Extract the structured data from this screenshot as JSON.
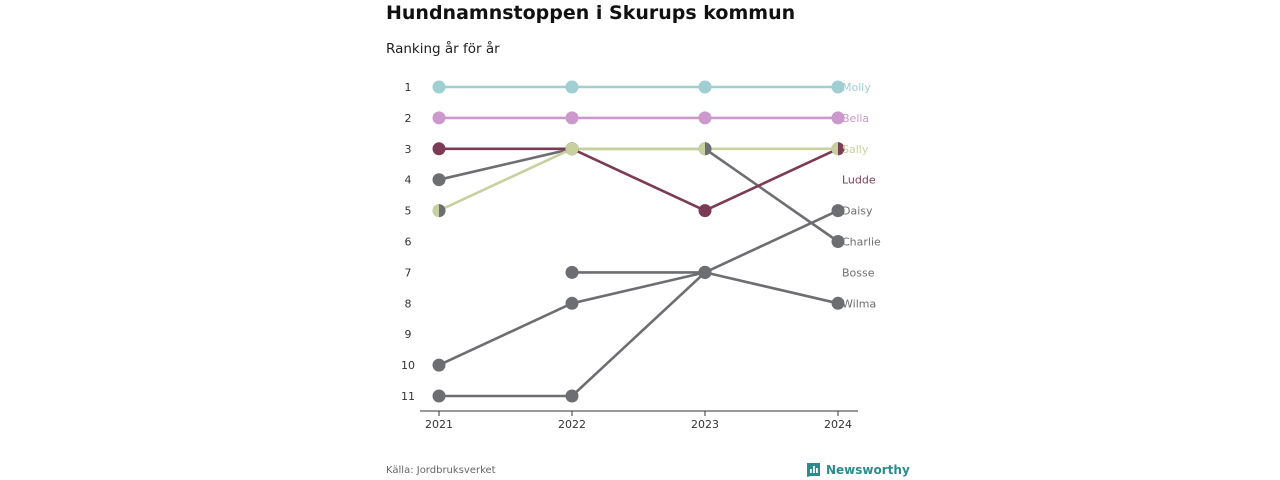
{
  "header": {
    "title": "Hundnamnstoppen i Skurups kommun",
    "subtitle": "Ranking år för år"
  },
  "footer": {
    "source": "Källa: Jordbruksverket",
    "brand": "Newsworthy"
  },
  "colors": {
    "grey": "#6d6e71",
    "molly": "#9fcfd0",
    "bella": "#cc99cc",
    "sally": "#c7d1a0",
    "ludde": "#7b3b55",
    "axis": "#333333",
    "brand": "#2e8b8b"
  },
  "icons": {
    "brand": "newsworthy-logo-icon"
  },
  "chart_data": {
    "type": "line",
    "title": "Hundnamnstoppen i Skurups kommun",
    "subtitle": "Ranking år för år",
    "x": [
      "2021",
      "2022",
      "2023",
      "2024"
    ],
    "y_ticks": [
      "1",
      "2",
      "3",
      "4",
      "5",
      "6",
      "7",
      "8",
      "9",
      "10",
      "11"
    ],
    "ylim": [
      1,
      11
    ],
    "y_reversed": true,
    "grid": false,
    "series": [
      {
        "name": "Daisy",
        "color": "#6d6e71",
        "values": [
          11,
          11,
          7,
          5
        ]
      },
      {
        "name": "Bosse",
        "color": "#6d6e71",
        "values": [
          10,
          8,
          7,
          null
        ]
      },
      {
        "name": "Wilma",
        "color": "#6d6e71",
        "values": [
          null,
          7,
          7,
          8
        ]
      },
      {
        "name": "Charlie",
        "color": "#6d6e71",
        "values": [
          4,
          3,
          3,
          6
        ]
      },
      {
        "name": "Ludde",
        "color": "#7b3b55",
        "values": [
          3,
          3,
          5,
          3
        ]
      },
      {
        "name": "Sally",
        "color": "#c7d1a0",
        "values": [
          5,
          3,
          3,
          3
        ]
      },
      {
        "name": "Bella",
        "color": "#cc99cc",
        "values": [
          2,
          2,
          2,
          2
        ]
      },
      {
        "name": "Molly",
        "color": "#9fcfd0",
        "values": [
          1,
          1,
          1,
          1
        ]
      }
    ],
    "end_labels": [
      {
        "name": "Molly",
        "rank": 1
      },
      {
        "name": "Bella",
        "rank": 2
      },
      {
        "name": "Sally",
        "rank": 3
      },
      {
        "name": "Ludde",
        "rank": 4
      },
      {
        "name": "Daisy",
        "rank": 5
      },
      {
        "name": "Charlie",
        "rank": 6
      },
      {
        "name": "Bosse",
        "rank": 7
      },
      {
        "name": "Wilma",
        "rank": 8
      }
    ]
  }
}
